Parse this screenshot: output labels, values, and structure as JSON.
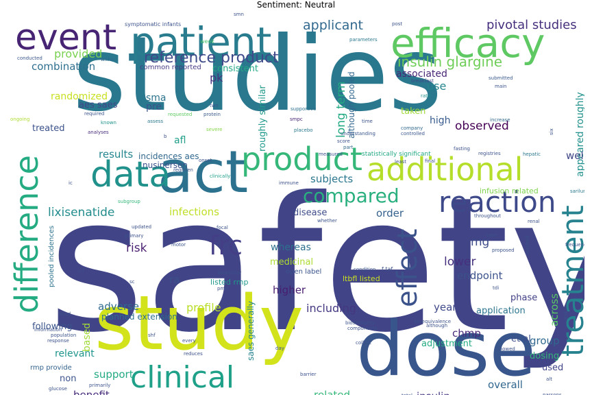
{
  "title": "Sentiment: Neutral",
  "words": [
    {
      "text": "safety",
      "color": "#414487"
    },
    {
      "text": "studies",
      "color": "#2a788e"
    },
    {
      "text": "study",
      "color": "#d2e21b"
    },
    {
      "text": "dose",
      "color": "#39568c"
    },
    {
      "text": "act",
      "color": "#2c718e"
    },
    {
      "text": "patient",
      "color": "#287c8e"
    },
    {
      "text": "efficacy",
      "color": "#5ec962"
    },
    {
      "text": "event",
      "color": "#482475"
    },
    {
      "text": "data",
      "color": "#21918c"
    },
    {
      "text": "additional",
      "color": "#b5de2b"
    },
    {
      "text": "product",
      "color": "#35b779"
    },
    {
      "text": "difference",
      "color": "#25ab82"
    },
    {
      "text": "reaction",
      "color": "#3e4989"
    },
    {
      "text": "clinical",
      "color": "#1fa088"
    },
    {
      "text": "treatment",
      "color": "#26828e"
    },
    {
      "text": "effect",
      "color": "#3b528b"
    },
    {
      "text": "compared",
      "color": "#2ab07f"
    },
    {
      "text": "frc",
      "color": "#433e85"
    },
    {
      "text": "reference product",
      "color": "#3e4a89"
    },
    {
      "text": "applicant",
      "color": "#31688e"
    },
    {
      "text": "insulin glargine",
      "color": "#6ece58"
    },
    {
      "text": "pivotal studies",
      "color": "#46307e"
    },
    {
      "text": "combination",
      "color": "#2e6f8e"
    },
    {
      "text": "provided",
      "color": "#7ad151"
    },
    {
      "text": "consistent",
      "color": "#22a884"
    },
    {
      "text": "common reported",
      "color": "#443a83"
    },
    {
      "text": "associated",
      "color": "#482677"
    },
    {
      "text": "use",
      "color": "#25858e"
    },
    {
      "text": "randomized",
      "color": "#c8e020"
    },
    {
      "text": "sma",
      "color": "#2c738e"
    },
    {
      "text": "pre",
      "color": "#3b528b"
    },
    {
      "text": "aes saes",
      "color": "#404688"
    },
    {
      "text": "pk",
      "color": "#46327e"
    },
    {
      "text": "long term",
      "color": "#24aa83"
    },
    {
      "text": "although pooled",
      "color": "#31668e"
    },
    {
      "text": "roughly similar",
      "color": "#1f998a"
    },
    {
      "text": "taken",
      "color": "#a0da39"
    },
    {
      "text": "high",
      "color": "#375a8c"
    },
    {
      "text": "observed",
      "color": "#440154"
    },
    {
      "text": "appeared roughly",
      "color": "#21918c"
    },
    {
      "text": "treated",
      "color": "#3b518b"
    },
    {
      "text": "afl",
      "color": "#1f9e89"
    },
    {
      "text": "results",
      "color": "#24868e"
    },
    {
      "text": "incidences aes",
      "color": "#31678e"
    },
    {
      "text": "nusinersen",
      "color": "#3b528b"
    },
    {
      "text": "subjects",
      "color": "#2a768e"
    },
    {
      "text": "well",
      "color": "#3f4788"
    },
    {
      "text": "lixisenatide",
      "color": "#228c8d"
    },
    {
      "text": "infections",
      "color": "#bddf26"
    },
    {
      "text": "disease",
      "color": "#3e4c8a"
    },
    {
      "text": "order",
      "color": "#34618d"
    },
    {
      "text": "infusion related",
      "color": "#7fd34e"
    },
    {
      "text": "risk",
      "color": "#481f70"
    },
    {
      "text": "mg",
      "color": "#3e4c8a"
    },
    {
      "text": "lower",
      "color": "#46307e"
    },
    {
      "text": "medicinal",
      "color": "#addc30"
    },
    {
      "text": "whereas",
      "color": "#2d708e"
    },
    {
      "text": "endpoint",
      "color": "#3b528b"
    },
    {
      "text": "ra",
      "color": "#3b528b"
    },
    {
      "text": "higher",
      "color": "#481d6f"
    },
    {
      "text": "listed rmp",
      "color": "#1f988b"
    },
    {
      "text": "ltbfl listed",
      "color": "#cae11f"
    },
    {
      "text": "open label",
      "color": "#3a548c"
    },
    {
      "text": "adverse",
      "color": "#306a8e"
    },
    {
      "text": "profile",
      "color": "#b8de29"
    },
    {
      "text": "including",
      "color": "#453781"
    },
    {
      "text": "phase",
      "color": "#424086"
    },
    {
      "text": "year",
      "color": "#3f4889"
    },
    {
      "text": "application",
      "color": "#2b748e"
    },
    {
      "text": "across",
      "color": "#5ac864"
    },
    {
      "text": "planned extension",
      "color": "#2d708e"
    },
    {
      "text": "following",
      "color": "#3a538b"
    },
    {
      "text": "based",
      "color": "#a2da37"
    },
    {
      "text": "saes generally",
      "color": "#25838e"
    },
    {
      "text": "chmp",
      "color": "#482878"
    },
    {
      "text": "et al",
      "color": "#3c4f8a"
    },
    {
      "text": "group",
      "color": "#31688e"
    },
    {
      "text": "adjustment",
      "color": "#25ab82"
    },
    {
      "text": "dosing",
      "color": "#35b779"
    },
    {
      "text": "used",
      "color": "#404588"
    },
    {
      "text": "relevant",
      "color": "#1f958b"
    },
    {
      "text": "support",
      "color": "#24aa83"
    },
    {
      "text": "benefit",
      "color": "#472c7a"
    },
    {
      "text": "non",
      "color": "#3b528b"
    },
    {
      "text": "rmp provide",
      "color": "#33638d"
    },
    {
      "text": "related",
      "color": "#35b779"
    },
    {
      "text": "insulin",
      "color": "#453581"
    },
    {
      "text": "overall",
      "color": "#31678e"
    },
    {
      "text": "pooled incidences",
      "color": "#2c728e"
    },
    {
      "text": "infections infusion",
      "color": "#b5de2b"
    },
    {
      "text": "symptomatic infants",
      "color": "#3b528b"
    },
    {
      "text": "week",
      "color": "#4ac16d"
    },
    {
      "text": "parameters",
      "color": "#2a788e"
    },
    {
      "text": "post",
      "color": "#3b528b"
    },
    {
      "text": "conducted",
      "color": "#39568c"
    },
    {
      "text": "within",
      "color": "#31688e"
    },
    {
      "text": "main",
      "color": "#3b528b"
    },
    {
      "text": "breakfast",
      "color": "#3e4a89"
    },
    {
      "text": "submitted",
      "color": "#38588c"
    },
    {
      "text": "rate",
      "color": "#21918c"
    },
    {
      "text": "required",
      "color": "#3b528b"
    },
    {
      "text": "known",
      "color": "#20928c"
    },
    {
      "text": "requested",
      "color": "#5ec962"
    },
    {
      "text": "protein",
      "color": "#38588c"
    },
    {
      "text": "supportive",
      "color": "#2d708e"
    },
    {
      "text": "ongoing",
      "color": "#addc30"
    },
    {
      "text": "analyses",
      "color": "#472c7a"
    },
    {
      "text": "assess",
      "color": "#2a788e"
    },
    {
      "text": "two",
      "color": "#3b528b"
    },
    {
      "text": "severe",
      "color": "#86d549"
    },
    {
      "text": "smpc",
      "color": "#482475"
    },
    {
      "text": "placebo",
      "color": "#2a788e"
    },
    {
      "text": "time",
      "color": "#3b528b"
    },
    {
      "text": "company",
      "color": "#31688e"
    },
    {
      "text": "controlled",
      "color": "#39568c"
    },
    {
      "text": "increase",
      "color": "#31688e"
    },
    {
      "text": "six",
      "color": "#3b528b"
    },
    {
      "text": "understanding",
      "color": "#39568c"
    },
    {
      "text": "score",
      "color": "#3b528b"
    },
    {
      "text": "fasting",
      "color": "#3b528b"
    },
    {
      "text": "part",
      "color": "#31688e"
    },
    {
      "text": "statistically significant",
      "color": "#22a884"
    },
    {
      "text": "least",
      "color": "#3b528b"
    },
    {
      "text": "final",
      "color": "#3b528b"
    },
    {
      "text": "registries",
      "color": "#3b528b"
    },
    {
      "text": "hepatic",
      "color": "#2a788e"
    },
    {
      "text": "measured",
      "color": "#3b528b"
    },
    {
      "text": "onset",
      "color": "#3b528b"
    },
    {
      "text": "regimen",
      "color": "#3b528b"
    },
    {
      "text": "clinically",
      "color": "#1f9e89"
    },
    {
      "text": "immune",
      "color": "#3b528b"
    },
    {
      "text": "ic",
      "color": "#3b528b"
    },
    {
      "text": "sarilumab",
      "color": "#2a788e"
    },
    {
      "text": "throughout",
      "color": "#3b528b"
    },
    {
      "text": "subgroup",
      "color": "#35b779"
    },
    {
      "text": "updated",
      "color": "#3b528b"
    },
    {
      "text": "primary",
      "color": "#3b528b"
    },
    {
      "text": "focal",
      "color": "#3b528b"
    },
    {
      "text": "whether",
      "color": "#3b528b"
    },
    {
      "text": "renal",
      "color": "#3b528b"
    },
    {
      "text": "case",
      "color": "#3b528b"
    },
    {
      "text": "reached",
      "color": "#3b528b"
    },
    {
      "text": "frequency",
      "color": "#3b528b"
    },
    {
      "text": "motor",
      "color": "#3b528b"
    },
    {
      "text": "proposed",
      "color": "#3b528b"
    },
    {
      "text": "c f",
      "color": "#3b528b"
    },
    {
      "text": "biosimilar",
      "color": "#3b528b"
    },
    {
      "text": "condition",
      "color": "#3b528b"
    },
    {
      "text": "f taf",
      "color": "#3b528b"
    },
    {
      "text": "sc",
      "color": "#3b528b"
    },
    {
      "text": "pmdi",
      "color": "#3b528b"
    },
    {
      "text": "tdi",
      "color": "#3b528b"
    },
    {
      "text": "blind",
      "color": "#3b528b"
    },
    {
      "text": "information",
      "color": "#3b528b"
    },
    {
      "text": "population",
      "color": "#3b528b"
    },
    {
      "text": "response",
      "color": "#3b528b"
    },
    {
      "text": "glucose",
      "color": "#3b528b"
    },
    {
      "text": "primarily",
      "color": "#3b528b"
    },
    {
      "text": "shf",
      "color": "#3b528b"
    },
    {
      "text": "every",
      "color": "#3b528b"
    },
    {
      "text": "reduces",
      "color": "#3b528b"
    },
    {
      "text": "day",
      "color": "#3b528b"
    },
    {
      "text": "barrier",
      "color": "#3b528b"
    },
    {
      "text": "collect",
      "color": "#3b528b"
    },
    {
      "text": "biosimilarity",
      "color": "#3b528b"
    },
    {
      "text": "components",
      "color": "#3b528b"
    },
    {
      "text": "bioequivalence",
      "color": "#3b528b"
    },
    {
      "text": "although",
      "color": "#3b528b"
    },
    {
      "text": "showed",
      "color": "#3b528b"
    },
    {
      "text": "alt",
      "color": "#3b528b"
    },
    {
      "text": "parsons",
      "color": "#3b528b"
    },
    {
      "text": "total",
      "color": "#3b528b"
    },
    {
      "text": "b",
      "color": "#3b528b"
    },
    {
      "text": "tbd",
      "color": "#3b528b"
    },
    {
      "text": "smn",
      "color": "#3b528b"
    }
  ]
}
